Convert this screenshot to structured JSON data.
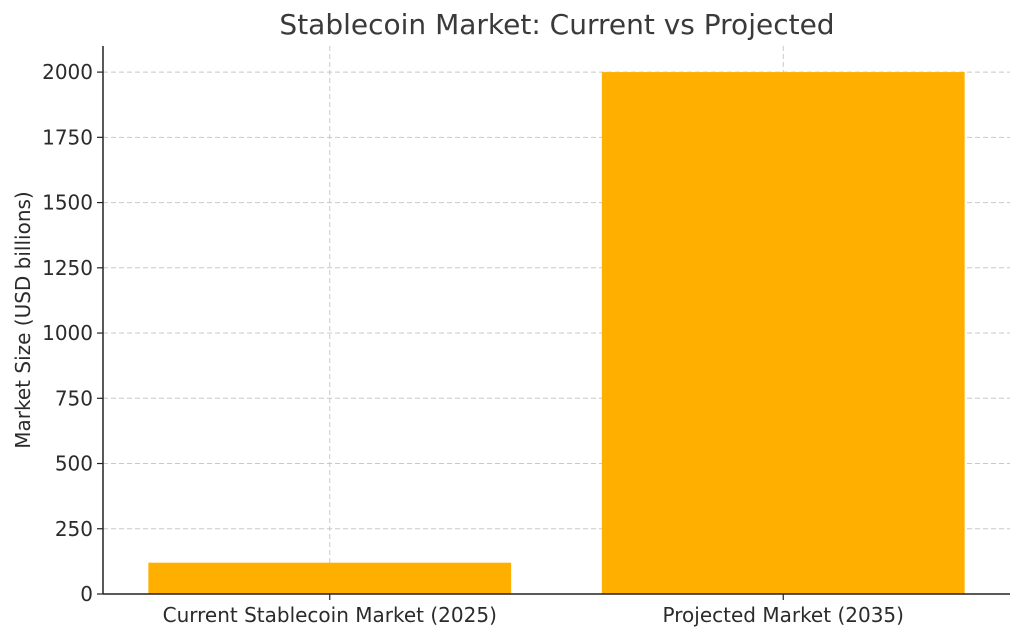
{
  "chart_data": {
    "type": "bar",
    "title": "Stablecoin Market: Current vs Projected",
    "xlabel": "",
    "ylabel": "Market Size (USD billions)",
    "categories": [
      "Current Stablecoin Market (2025)",
      "Projected Market (2035)"
    ],
    "values": [
      120,
      2000
    ],
    "ylim": [
      0,
      2100
    ],
    "yticks": [
      0,
      250,
      500,
      750,
      1000,
      1250,
      1500,
      1750,
      2000
    ],
    "grid": true,
    "bar_color": "#FFAF00"
  }
}
